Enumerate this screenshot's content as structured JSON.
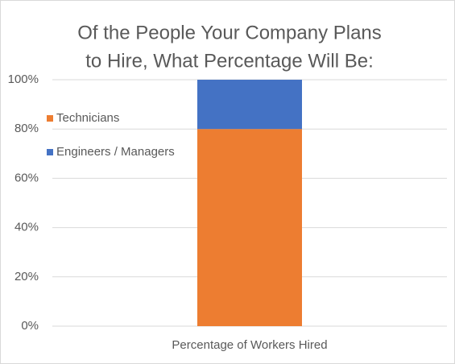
{
  "chart_data": {
    "type": "stacked-bar",
    "title": [
      "Of the People Your Company Plans",
      "to Hire, What Percentage Will Be:"
    ],
    "categories": [
      "Percentage of Workers Hired"
    ],
    "series": [
      {
        "name": "Technicians",
        "color": "#ed7d31",
        "values": [
          80
        ]
      },
      {
        "name": "Engineers / Managers",
        "color": "#4472c4",
        "values": [
          20
        ]
      }
    ],
    "ylim": [
      0,
      100
    ],
    "yticks": [
      {
        "value": 0,
        "label": "0%"
      },
      {
        "value": 20,
        "label": "20%"
      },
      {
        "value": 40,
        "label": "40%"
      },
      {
        "value": 60,
        "label": "60%"
      },
      {
        "value": 80,
        "label": "80%"
      },
      {
        "value": 100,
        "label": "100%"
      }
    ],
    "grid": true,
    "legend": "left"
  }
}
